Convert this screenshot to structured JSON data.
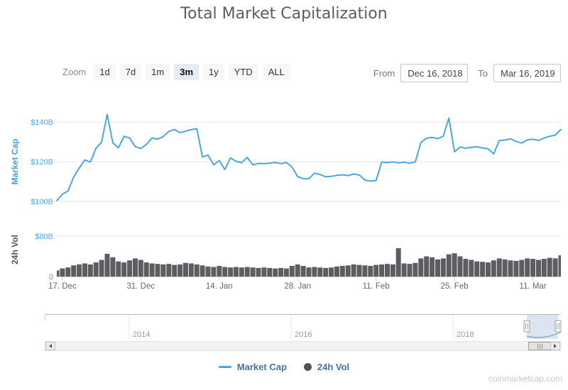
{
  "title": "Total Market Capitalization",
  "controls": {
    "zoom_label": "Zoom",
    "zoom_buttons": [
      {
        "label": "1d",
        "selected": false
      },
      {
        "label": "7d",
        "selected": false
      },
      {
        "label": "1m",
        "selected": false
      },
      {
        "label": "3m",
        "selected": true
      },
      {
        "label": "1y",
        "selected": false
      },
      {
        "label": "YTD",
        "selected": false
      },
      {
        "label": "ALL",
        "selected": false
      }
    ],
    "from_label": "From",
    "from_value": "Dec 16, 2018",
    "to_label": "To",
    "to_value": "Mar 16, 2019"
  },
  "chart_data": [
    {
      "id": "market-cap",
      "type": "line",
      "name": "Market Cap",
      "ylabel": "Market Cap",
      "color": "#4DA6DC",
      "unit": "USD billions",
      "date_start": "Dec 16, 2018",
      "date_end": "Mar 16, 2019",
      "frequency": "daily",
      "y_range_shown": [
        100,
        145
      ],
      "grid": true,
      "y_ticks": [
        {
          "label": "$100B",
          "value": 100,
          "color": "#55AADC"
        },
        {
          "label": "$120B",
          "value": 120,
          "color": "#55AADC"
        },
        {
          "label": "$140B",
          "value": 140,
          "color": "#55AADC"
        }
      ],
      "x_ticks": [
        {
          "label": "17. Dec",
          "index": 1
        },
        {
          "label": "31. Dec",
          "index": 15
        },
        {
          "label": "14. Jan",
          "index": 29
        },
        {
          "label": "28. Jan",
          "index": 43
        },
        {
          "label": "11. Feb",
          "index": 57
        },
        {
          "label": "25. Feb",
          "index": 71
        },
        {
          "label": "11. Mar",
          "index": 85
        }
      ],
      "values": [
        100.4,
        103.6,
        105.2,
        112.3,
        116.8,
        120.9,
        119.8,
        126.8,
        129.9,
        143.8,
        129.5,
        127.0,
        132.8,
        131.9,
        127.6,
        126.6,
        128.7,
        131.9,
        131.4,
        132.6,
        135.2,
        136.2,
        134.6,
        135.4,
        136.1,
        136.6,
        122.4,
        123.3,
        118.4,
        120.6,
        116.0,
        121.9,
        120.2,
        119.5,
        122.1,
        118.4,
        119.1,
        119.0,
        119.2,
        119.6,
        119.0,
        119.6,
        117.3,
        112.5,
        111.5,
        111.4,
        114.2,
        113.5,
        112.4,
        112.6,
        113.1,
        113.4,
        113.0,
        113.8,
        113.3,
        110.7,
        110.2,
        110.5,
        119.8,
        119.5,
        119.9,
        119.4,
        119.7,
        119.2,
        119.9,
        129.6,
        131.8,
        132.2,
        131.6,
        132.8,
        142.0,
        125.0,
        127.4,
        126.8,
        127.2,
        127.5,
        126.9,
        126.5,
        123.9,
        130.6,
        130.9,
        131.5,
        130.2,
        129.4,
        131.0,
        131.3,
        130.7,
        131.9,
        132.8,
        133.4,
        136.2
      ]
    },
    {
      "id": "24h-vol",
      "type": "bar",
      "name": "24h Vol",
      "ylabel": "24h Vol",
      "color": "#5D5D61",
      "unit": "USD billions",
      "date_start": "Dec 16, 2018",
      "date_end": "Mar 16, 2019",
      "frequency": "daily",
      "y_range_shown": [
        0,
        80
      ],
      "y_ticks": [
        {
          "label": "0",
          "value": 0,
          "color": "#888888"
        },
        {
          "label": "$80B",
          "value": 80,
          "color": "#55AADC"
        }
      ],
      "values": [
        12,
        16,
        18,
        22,
        24,
        26,
        24,
        28,
        33,
        45,
        38,
        30,
        28,
        32,
        36,
        33,
        28,
        26,
        25,
        24,
        25,
        23,
        24,
        27,
        26,
        24,
        22,
        20,
        19,
        21,
        19,
        18,
        19,
        18,
        19,
        18,
        17,
        18,
        17,
        16,
        17,
        16,
        21,
        24,
        21,
        18,
        19,
        18,
        17,
        18,
        20,
        21,
        22,
        24,
        23,
        22,
        21,
        23,
        24,
        25,
        24,
        56,
        26,
        25,
        27,
        36,
        40,
        38,
        34,
        36,
        44,
        46,
        40,
        35,
        33,
        30,
        29,
        28,
        32,
        36,
        34,
        32,
        31,
        33,
        36,
        35,
        33,
        35,
        37,
        36,
        42
      ]
    }
  ],
  "navigator": {
    "years": [
      {
        "label": "2014",
        "x": 182
      },
      {
        "label": "2016",
        "x": 410
      },
      {
        "label": "2018",
        "x": 638
      }
    ]
  },
  "legend": {
    "items": [
      {
        "label": "Market Cap",
        "marker": "line",
        "color": "#4DA6DC"
      },
      {
        "label": "24h Vol",
        "marker": "circle",
        "color": "#545454"
      }
    ]
  },
  "watermark": "coinmarketcap.com",
  "colors": {
    "line": "#4DA6DC",
    "volume": "#5D5D61",
    "axis_label_blue": "#55AADC",
    "axis_label_gray": "#666666",
    "legend_text": "#4572A7",
    "selected_button_bg": "#E6EBF5",
    "gridline": "#E6E6E6"
  }
}
